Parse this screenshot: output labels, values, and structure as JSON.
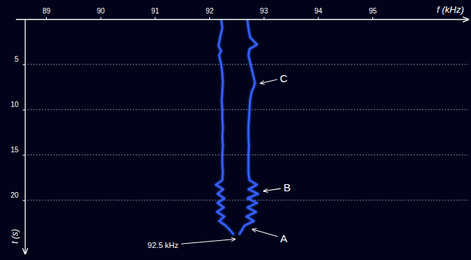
{
  "chart_data": {
    "type": "line",
    "x_label": "f (kHz)",
    "y_label": "t (s)",
    "xlim": [
      88.44,
      96.76
    ],
    "ylim": [
      0,
      25.9
    ],
    "xticks": [
      89,
      90,
      91,
      92,
      93,
      94,
      95
    ],
    "yticks": [
      5,
      10,
      15,
      20
    ],
    "grid": true,
    "series": [
      {
        "color": "#3560ff",
        "x": [
          92.22,
          92.24,
          92.2,
          92.17,
          92.22,
          92.18,
          92.22,
          92.24,
          92.25,
          92.24,
          92.23,
          92.24,
          92.24,
          92.25,
          92.24,
          92.25,
          92.24,
          92.24,
          92.25,
          92.24,
          92.12,
          92.26,
          92.15,
          92.28,
          92.15,
          92.27,
          92.14,
          92.28,
          92.18,
          92.3,
          92.38,
          92.45
        ],
        "values": [
          0,
          1,
          2,
          3,
          3.5,
          4,
          5,
          6,
          7,
          8,
          9,
          10,
          11,
          12,
          13,
          14,
          15,
          16,
          17,
          17.8,
          18.3,
          18.8,
          19.3,
          19.8,
          20.3,
          20.8,
          21.3,
          21.8,
          22.3,
          22.8,
          23.3,
          23.8
        ]
      },
      {
        "color": "#3560ff",
        "x": [
          92.7,
          92.72,
          92.75,
          92.88,
          92.74,
          92.72,
          92.76,
          92.8,
          92.84,
          92.82,
          92.78,
          92.75,
          92.74,
          92.73,
          92.72,
          92.72,
          92.73,
          92.72,
          92.72,
          92.72,
          92.74,
          92.88,
          92.72,
          92.9,
          92.7,
          92.88,
          92.7,
          92.86,
          92.68,
          92.82,
          92.65,
          92.6,
          92.55
        ],
        "values": [
          0,
          1,
          2,
          2.8,
          3.3,
          4,
          5,
          6,
          7,
          7.5,
          8,
          9,
          10,
          11,
          12,
          13,
          14,
          15,
          16,
          17,
          17.8,
          18.3,
          18.8,
          19.3,
          19.8,
          20.3,
          20.8,
          21.3,
          21.8,
          22.3,
          22.8,
          23.3,
          23.8
        ]
      },
      {
        "color": "#1c2b8f",
        "x": [
          96.08,
          96.08
        ],
        "values": [
          0,
          25.9
        ]
      }
    ],
    "annotations": [
      {
        "text": "C",
        "x": 93.37,
        "y": 6.5,
        "arrow_x": 92.94,
        "arrow_y": 7.1
      },
      {
        "text": "B",
        "x": 93.43,
        "y": 18.6,
        "arrow_x": 93.0,
        "arrow_y": 19.0
      },
      {
        "text": "A",
        "x": 93.37,
        "y": 24.2,
        "arrow_x": 92.79,
        "arrow_y": 23.2
      },
      {
        "text": "92.5 kHz",
        "x": 91.15,
        "y": 25.0,
        "arrow_x": 92.48,
        "arrow_y": 24.3
      }
    ]
  }
}
